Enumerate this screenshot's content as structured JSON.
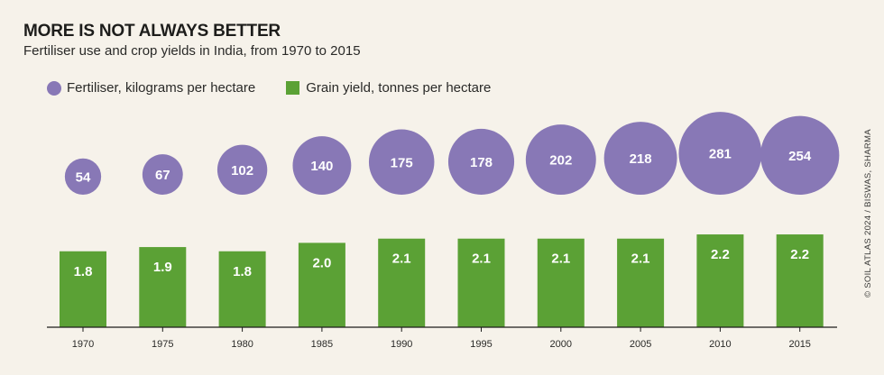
{
  "chart_data": {
    "type": "bar",
    "title": "MORE IS NOT ALWAYS BETTER",
    "subtitle": "Fertiliser use and crop yields in India, from 1970 to 2015",
    "categories": [
      "1970",
      "1975",
      "1980",
      "1985",
      "1990",
      "1995",
      "2000",
      "2005",
      "2010",
      "2015"
    ],
    "series": [
      {
        "name": "Fertiliser, kilograms per hectare",
        "mark": "bubble",
        "color": "#8878b6",
        "values": [
          54,
          67,
          102,
          140,
          175,
          178,
          202,
          218,
          281,
          254
        ],
        "labels": [
          "54",
          "67",
          "102",
          "140",
          "175",
          "178",
          "202",
          "218",
          "281",
          "254"
        ]
      },
      {
        "name": "Grain yield, tonnes per hectare",
        "mark": "bar",
        "color": "#5ba135",
        "values": [
          1.8,
          1.9,
          1.8,
          2.0,
          2.1,
          2.1,
          2.1,
          2.1,
          2.2,
          2.2
        ],
        "labels": [
          "1.8",
          "1.9",
          "1.8",
          "2.0",
          "2.1",
          "2.1",
          "2.1",
          "2.1",
          "2.2",
          "2.2"
        ]
      }
    ],
    "xlabel": "",
    "ylabel": "",
    "ylim": [
      0,
      2.2
    ],
    "grid": false,
    "legend": "top-left",
    "credit": "© SOIL ATLAS 2024 / BISWAS, SHARMA"
  }
}
